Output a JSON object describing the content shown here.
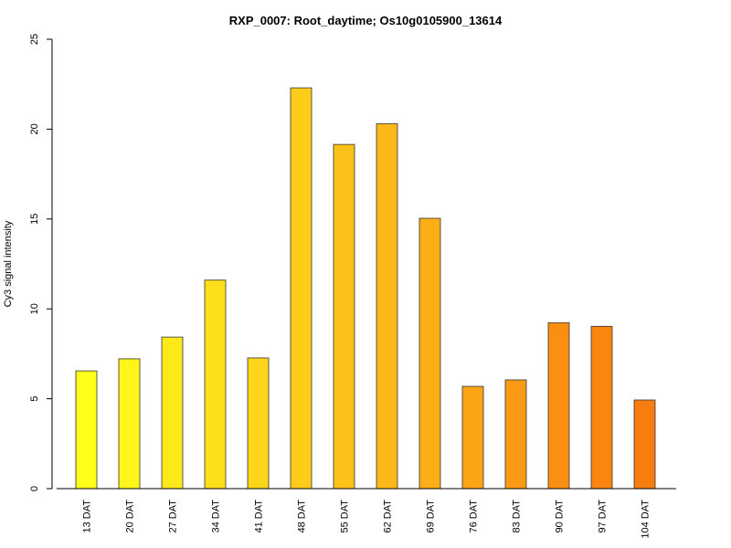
{
  "chart_data": {
    "type": "bar",
    "title": "RXP_0007: Root_daytime; Os10g0105900_13614",
    "xlabel": "",
    "ylabel": "Cy3 signal intensity",
    "ylim": [
      0,
      25
    ],
    "yticks": [
      0,
      5,
      10,
      15,
      20,
      25
    ],
    "grid": false,
    "categories": [
      "13 DAT",
      "20 DAT",
      "27 DAT",
      "34 DAT",
      "41 DAT",
      "48 DAT",
      "55 DAT",
      "62 DAT",
      "69 DAT",
      "76 DAT",
      "83 DAT",
      "90 DAT",
      "97 DAT",
      "104 DAT"
    ],
    "values": [
      6.55,
      7.22,
      8.43,
      11.6,
      7.27,
      22.3,
      19.15,
      20.3,
      15.04,
      5.69,
      6.05,
      9.23,
      9.03,
      4.93
    ],
    "colors": [
      "#FFFF19",
      "#FFF51A",
      "#FEEA1A",
      "#FEE01A",
      "#FDD61A",
      "#FDCC19",
      "#FCC219",
      "#FCB818",
      "#FBAE17",
      "#FBA416",
      "#FB9A15",
      "#FA8F13",
      "#FA8511",
      "#F97C0F"
    ]
  }
}
